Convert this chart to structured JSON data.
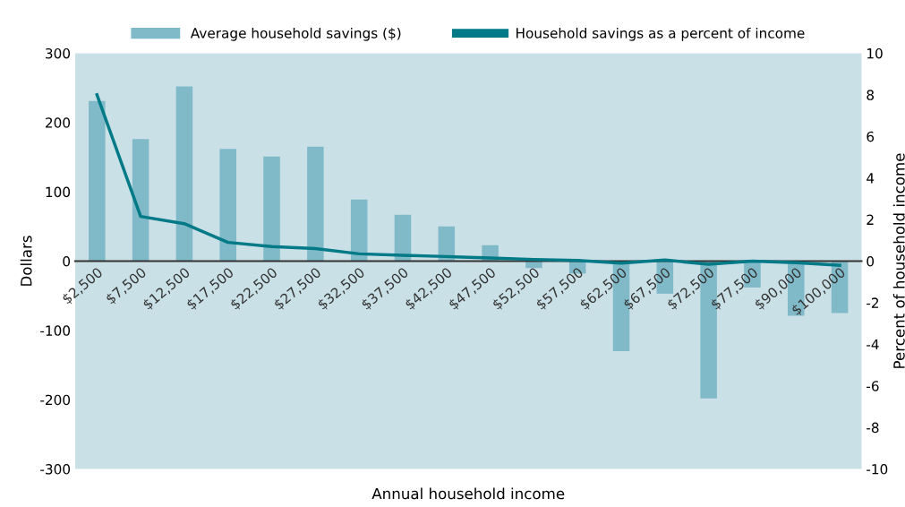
{
  "chart_data": {
    "type": "bar",
    "xlabel": "Annual household income",
    "ylabel": "Dollars",
    "y2label": "Percent of household income",
    "categories": [
      "$2,500",
      "$7,500",
      "$12,500",
      "$17,500",
      "$22,500",
      "$27,500",
      "$32,500",
      "$37,500",
      "$42,500",
      "$47,500",
      "$52,500",
      "$57,500",
      "$62,500",
      "$67,500",
      "$72,500",
      "$77,500",
      "$90,000",
      "$100,000"
    ],
    "series": [
      {
        "name": "Average household savings ($)",
        "color": "#80b9c8",
        "values": [
          231,
          176,
          252,
          162,
          151,
          165,
          89,
          67,
          50,
          23,
          -10,
          -18,
          -130,
          -47,
          -198,
          -38,
          -79,
          -75
        ]
      },
      {
        "name": "Household savings as a percent of income",
        "type": "line",
        "axis": "y2",
        "color": "#007a87",
        "values": [
          8.0,
          2.15,
          1.8,
          0.9,
          0.7,
          0.6,
          0.35,
          0.28,
          0.22,
          0.15,
          0.08,
          0.03,
          -0.1,
          0.05,
          -0.15,
          0.0,
          -0.08,
          -0.2
        ]
      }
    ],
    "ylim": [
      -300,
      300
    ],
    "yticks": [
      -300,
      -200,
      -100,
      0,
      100,
      200,
      300
    ],
    "y2lim": [
      -10,
      10
    ],
    "y2ticks": [
      -10,
      -8,
      -6,
      -4,
      -2,
      0,
      2,
      4,
      6,
      8,
      10
    ],
    "legend": "top",
    "grid": false
  }
}
